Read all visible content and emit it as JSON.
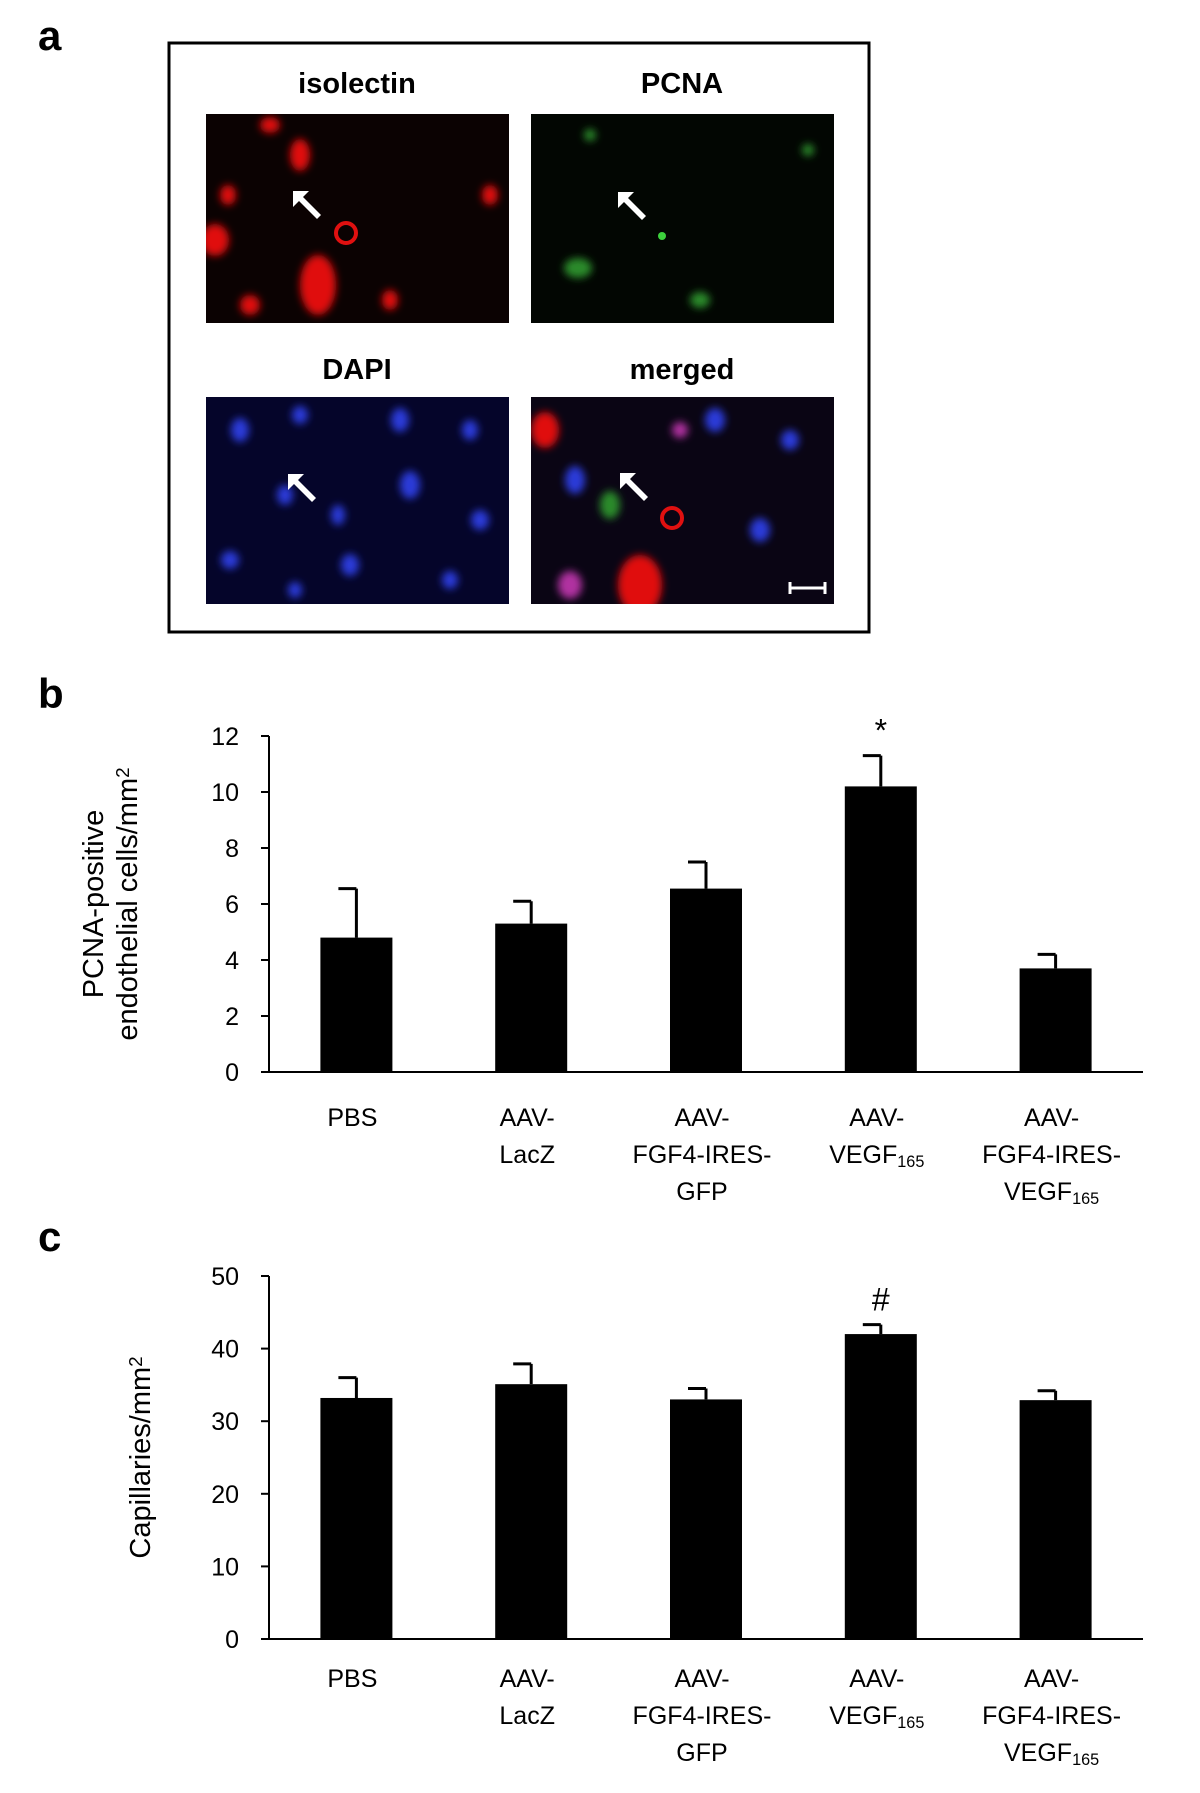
{
  "panel_labels": [
    "a",
    "b",
    "c"
  ],
  "image_titles": [
    "isolectin",
    "PCNA",
    "DAPI",
    "merged"
  ],
  "chart_data": [
    {
      "type": "bar",
      "ylabel": "PCNA-positive\nendothelial cells/mm2",
      "categories": [
        "PBS",
        "AAV-\nLacZ",
        "AAV-\nFGF4-IRES-\nGFP",
        "AAV-\nVEGF165",
        "AAV-\nFGF4-IRES-\nVEGF165"
      ],
      "values": [
        4.8,
        5.3,
        6.55,
        10.2,
        3.7
      ],
      "errors": [
        1.75,
        0.8,
        0.95,
        1.1,
        0.5
      ],
      "annotations": [
        null,
        null,
        null,
        "*",
        null
      ],
      "color": "#000000",
      "ylim": [
        0,
        12
      ],
      "yticks": [
        0,
        2,
        4,
        6,
        8,
        10,
        12
      ]
    },
    {
      "type": "bar",
      "ylabel": "Capillaries/mm2",
      "categories": [
        "PBS",
        "AAV-\nLacZ",
        "AAV-\nFGF4-IRES-\nGFP",
        "AAV-\nVEGF165",
        "AAV-\nFGF4-IRES-\nVEGF165"
      ],
      "values": [
        33.2,
        35.1,
        33.0,
        42.0,
        32.9
      ],
      "errors": [
        2.8,
        2.8,
        1.5,
        1.3,
        1.3
      ],
      "annotations": [
        null,
        null,
        null,
        "#",
        null
      ],
      "color": "#000000",
      "ylim": [
        0,
        50
      ],
      "yticks": [
        0,
        10,
        20,
        30,
        40,
        50
      ]
    }
  ]
}
